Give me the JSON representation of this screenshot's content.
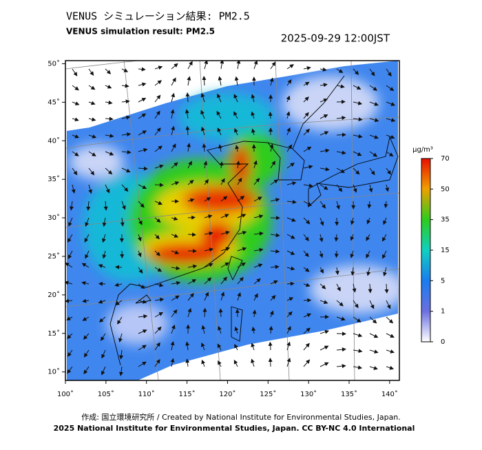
{
  "header": {
    "title_jp": "VENUS シミュレーション結果: PM2.5",
    "title_en": "VENUS simulation result: PM2.5",
    "timestamp": "2025-09-29 12:00JST"
  },
  "map": {
    "xlim": [
      100,
      141.2
    ],
    "ylim": [
      8.9,
      50.4
    ],
    "xticks": [
      {
        "value": 100,
        "label": "100˚"
      },
      {
        "value": 105,
        "label": "105˚"
      },
      {
        "value": 110,
        "label": "110˚"
      },
      {
        "value": 115,
        "label": "115˚"
      },
      {
        "value": 120,
        "label": "120˚"
      },
      {
        "value": 125,
        "label": "125˚"
      },
      {
        "value": 130,
        "label": "130˚"
      },
      {
        "value": 135,
        "label": "135˚"
      },
      {
        "value": 140,
        "label": "140˚"
      }
    ],
    "yticks": [
      {
        "value": 10,
        "label": "10˚"
      },
      {
        "value": 15,
        "label": "15˚"
      },
      {
        "value": 20,
        "label": "20˚"
      },
      {
        "value": 25,
        "label": "25˚"
      },
      {
        "value": 30,
        "label": "30˚"
      },
      {
        "value": 35,
        "label": "35˚"
      },
      {
        "value": 40,
        "label": "40˚"
      },
      {
        "value": 45,
        "label": "45˚"
      },
      {
        "value": 50,
        "label": "50˚"
      }
    ]
  },
  "colorbar": {
    "unit": "μg/m³",
    "ticks": [
      0,
      1,
      5,
      15,
      35,
      50,
      70
    ],
    "colors": [
      "#ffffff",
      "#6b6fe0",
      "#1a7cf0",
      "#10d0c0",
      "#2ecc1c",
      "#f0a000",
      "#e81000"
    ]
  },
  "footer": {
    "line1": "作成: 国立環境研究所 / Created by National Institute for Environmental Studies, Japan.",
    "line2": "2025 National Institute for Environmental Studies, Japan. CC BY-NC 4.0 International"
  }
}
